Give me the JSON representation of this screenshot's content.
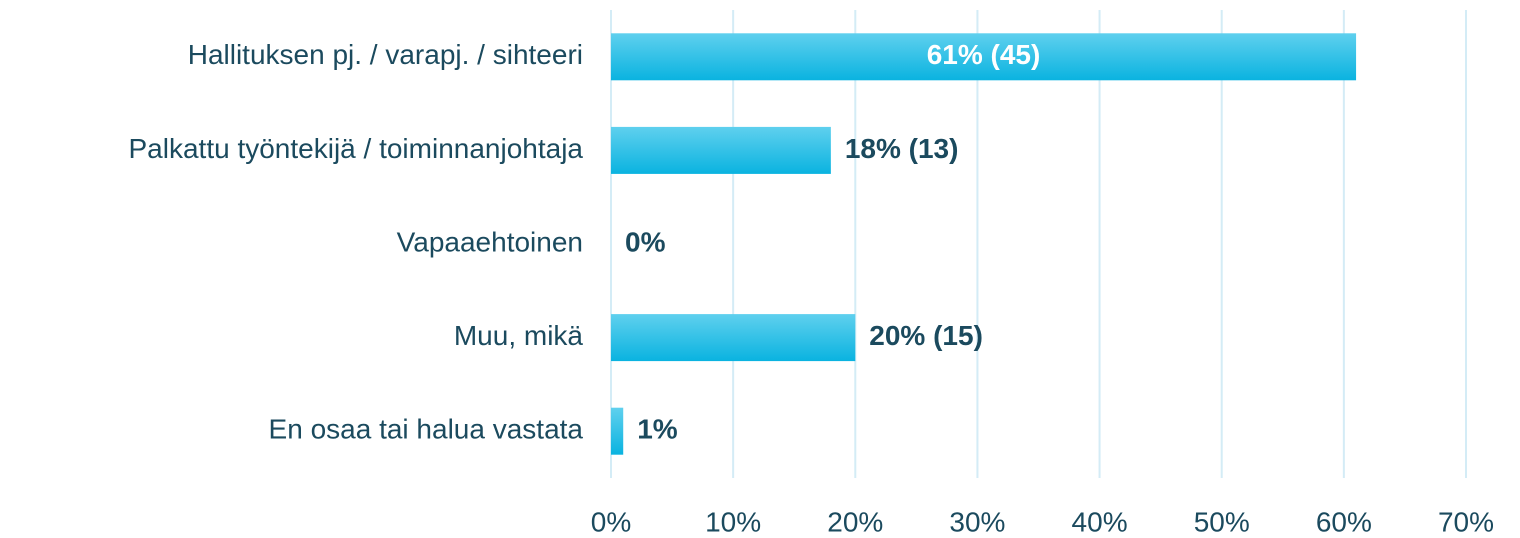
{
  "chart_data": {
    "type": "hbar",
    "categories": [
      "Hallituksen pj. / varapj. / sihteeri",
      "Palkattu työntekijä / toiminnanjohtaja",
      "Vapaaehtoinen",
      "Muu, mikä",
      "En osaa tai halua vastata"
    ],
    "values": [
      61,
      18,
      0,
      20,
      1
    ],
    "value_labels": [
      "61% (45)",
      "18% (13)",
      "0%",
      "20% (15)",
      "1%"
    ],
    "color": "#0ab3e0",
    "xlim": [
      0,
      70
    ],
    "xticks": [
      {
        "value": 0,
        "label": "0%"
      },
      {
        "value": 10,
        "label": "10%"
      },
      {
        "value": 20,
        "label": "20%"
      },
      {
        "value": 30,
        "label": "30%"
      },
      {
        "value": 40,
        "label": "40%"
      },
      {
        "value": 50,
        "label": "50%"
      },
      {
        "value": 60,
        "label": "60%"
      },
      {
        "value": 70,
        "label": "70%"
      }
    ],
    "grid": true
  }
}
